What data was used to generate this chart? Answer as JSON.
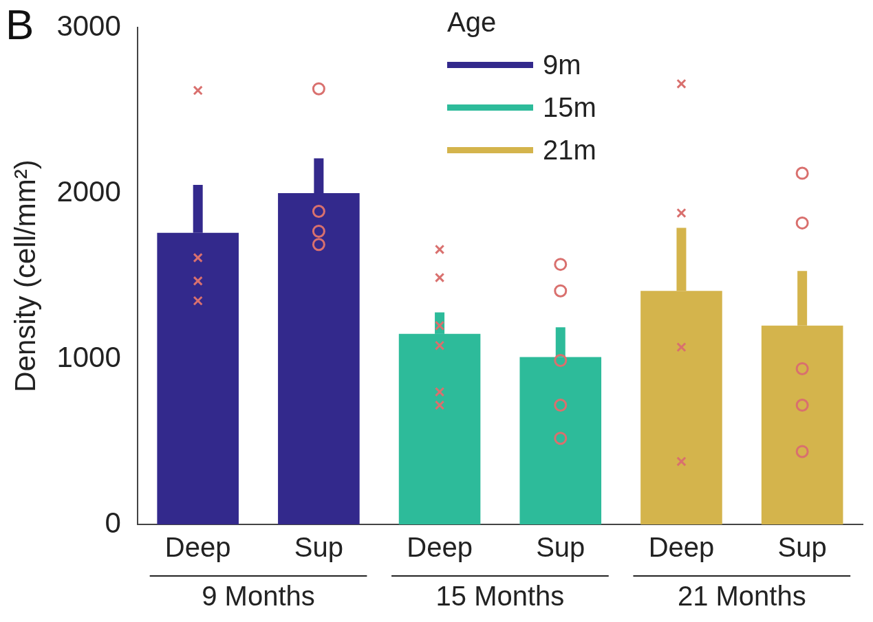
{
  "chart_data": {
    "type": "bar",
    "title": "B",
    "ylabel": "Density (cell/mm²)",
    "legend_title": "Age",
    "legend": "top",
    "categories": [
      "Deep",
      "Sup",
      "Deep",
      "Sup",
      "Deep",
      "Sup"
    ],
    "annotations": [
      "9 Months",
      "15 Months",
      "21 Months"
    ],
    "ylim": [
      0,
      3000
    ],
    "yticks": [
      0,
      1000,
      2000,
      3000
    ],
    "grid": false,
    "series": [
      {
        "name": "9m",
        "color": "#33298c",
        "values": [
          1760,
          2000,
          null,
          null,
          null,
          null
        ],
        "errors": [
          [
            1760,
            2050
          ],
          [
            2000,
            2210
          ],
          null,
          null,
          null,
          null
        ]
      },
      {
        "name": "15m",
        "color": "#2dbb9a",
        "values": [
          null,
          null,
          1150,
          1010,
          null,
          null
        ],
        "errors": [
          null,
          null,
          [
            1150,
            1280
          ],
          [
            1010,
            1190
          ],
          null,
          null
        ]
      },
      {
        "name": "21m",
        "color": "#d4b44c",
        "values": [
          null,
          null,
          null,
          null,
          1410,
          1200
        ],
        "errors": [
          null,
          null,
          null,
          null,
          [
            1410,
            1790
          ],
          [
            1200,
            1530
          ]
        ]
      },
      {
        "type": "scatter",
        "marker": "cross",
        "color": "#d9706e",
        "values": [
          2620,
          null,
          1660,
          null,
          2660,
          null
        ]
      },
      {
        "type": "scatter",
        "marker": "cross",
        "color": "#d9706e",
        "values": [
          1610,
          null,
          1490,
          null,
          1880,
          null
        ]
      },
      {
        "type": "scatter",
        "marker": "cross",
        "color": "#d9706e",
        "values": [
          1470,
          null,
          1200,
          null,
          1070,
          null
        ]
      },
      {
        "type": "scatter",
        "marker": "cross",
        "color": "#d9706e",
        "values": [
          1350,
          null,
          1080,
          null,
          380,
          null
        ]
      },
      {
        "type": "scatter",
        "marker": "cross",
        "color": "#d9706e",
        "values": [
          null,
          null,
          800,
          null,
          null,
          null
        ]
      },
      {
        "type": "scatter",
        "marker": "cross",
        "color": "#d9706e",
        "values": [
          null,
          null,
          720,
          null,
          null,
          null
        ]
      },
      {
        "type": "scatter",
        "marker": "circle",
        "color": "#d9706e",
        "values": [
          null,
          2630,
          null,
          1570,
          null,
          2120
        ]
      },
      {
        "type": "scatter",
        "marker": "circle",
        "color": "#d9706e",
        "values": [
          null,
          1890,
          null,
          1410,
          null,
          1820
        ]
      },
      {
        "type": "scatter",
        "marker": "circle",
        "color": "#d9706e",
        "values": [
          null,
          1770,
          null,
          990,
          null,
          940
        ]
      },
      {
        "type": "scatter",
        "marker": "circle",
        "color": "#d9706e",
        "values": [
          null,
          1690,
          null,
          720,
          null,
          720
        ]
      },
      {
        "type": "scatter",
        "marker": "circle",
        "color": "#d9706e",
        "values": [
          null,
          null,
          null,
          520,
          null,
          440
        ]
      }
    ]
  }
}
